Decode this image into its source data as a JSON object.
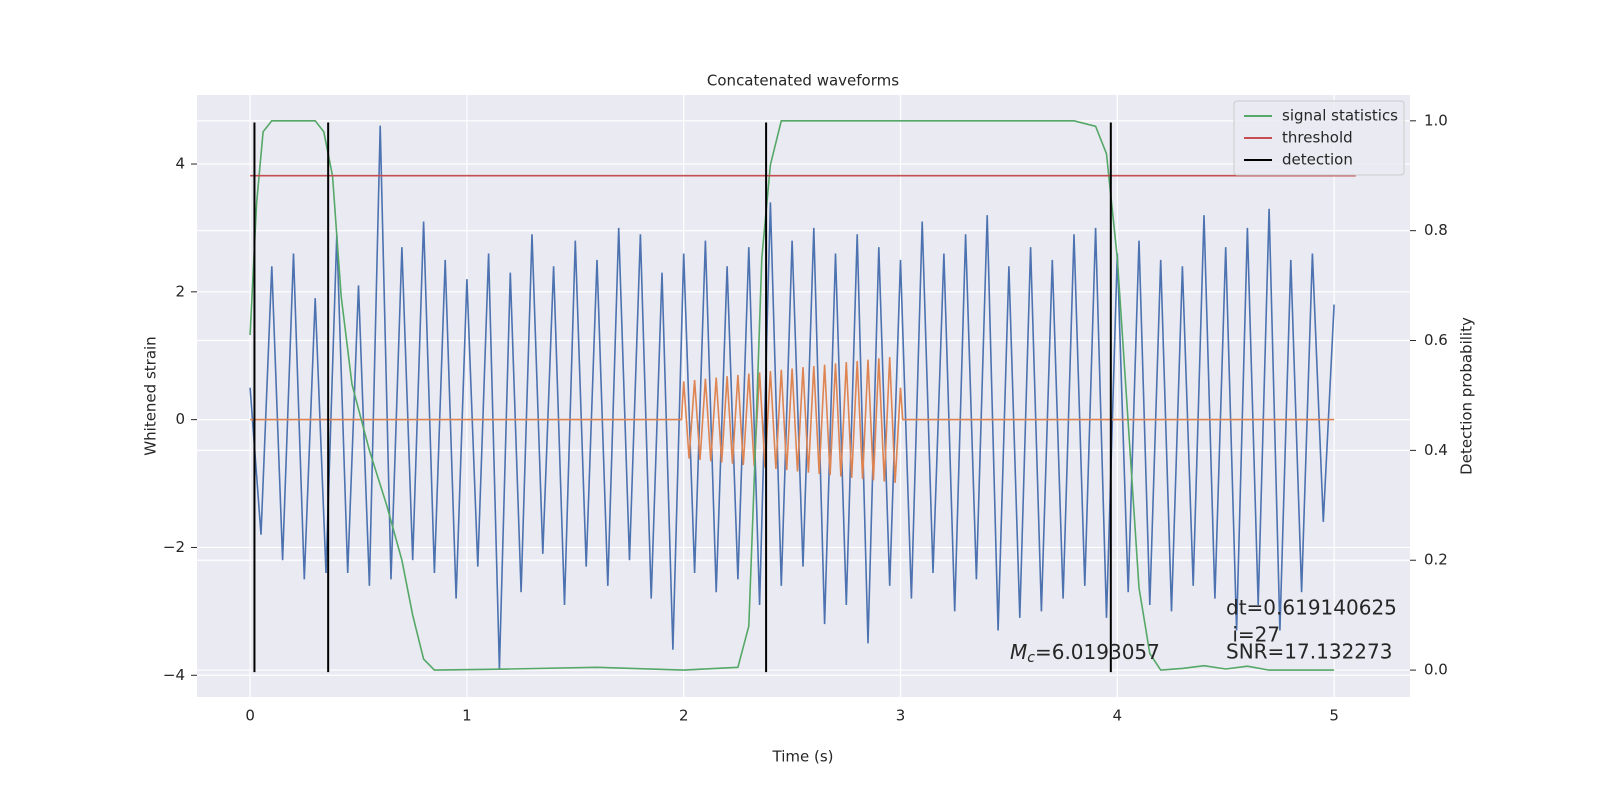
{
  "chart_data": {
    "type": "line",
    "title": "Concatenated waveforms",
    "xlabel": "Time (s)",
    "ylabel": "Whitened strain",
    "y2label": "Detection probability",
    "xlim": [
      -0.245,
      5.35
    ],
    "ylim": [
      -4.34,
      5.08
    ],
    "y2lim": [
      -0.049,
      1.047
    ],
    "xticks": [
      0,
      1,
      2,
      3,
      4,
      5
    ],
    "yticks": [
      {
        "value": -4,
        "label": "−4"
      },
      {
        "value": -2,
        "label": "−2"
      },
      0,
      2,
      4
    ],
    "y2ticks": [
      {
        "value": 0,
        "label": "0.0"
      },
      0.2,
      0.4,
      0.6,
      0.8,
      {
        "value": 1,
        "label": "1.0"
      }
    ],
    "grid": true,
    "legend": "upper right",
    "series": [
      {
        "color": "#4c72b0",
        "x": [
          0,
          0.05,
          0.1,
          0.15,
          0.2,
          0.25,
          0.3,
          0.35,
          0.4,
          0.45,
          0.5,
          0.55,
          0.6,
          0.65,
          0.7,
          0.75,
          0.8,
          0.85,
          0.9,
          0.95,
          1,
          1.05,
          1.1,
          1.15,
          1.2,
          1.25,
          1.3,
          1.35,
          1.4,
          1.45,
          1.5,
          1.55,
          1.6,
          1.65,
          1.7,
          1.75,
          1.8,
          1.85,
          1.9,
          1.95,
          2,
          2.05,
          2.1,
          2.15,
          2.2,
          2.25,
          2.3,
          2.35,
          2.4,
          2.45,
          2.5,
          2.55,
          2.6,
          2.65,
          2.7,
          2.75,
          2.8,
          2.85,
          2.9,
          2.95,
          3,
          3.05,
          3.1,
          3.15,
          3.2,
          3.25,
          3.3,
          3.35,
          3.4,
          3.45,
          3.5,
          3.55,
          3.6,
          3.65,
          3.7,
          3.75,
          3.8,
          3.85,
          3.9,
          3.95,
          4,
          4.05,
          4.1,
          4.15,
          4.2,
          4.25,
          4.3,
          4.35,
          4.4,
          4.45,
          4.5,
          4.55,
          4.6,
          4.65,
          4.7,
          4.75,
          4.8,
          4.85,
          4.9,
          4.95,
          5
        ],
        "values": [
          0.5,
          -1.8,
          2.4,
          -2.2,
          2.6,
          -2.5,
          1.9,
          -2.4,
          2.9,
          -2.4,
          2.1,
          -2.6,
          4.6,
          -2.5,
          2.7,
          -2.2,
          3.1,
          -2.4,
          2.5,
          -2.8,
          2.2,
          -2.3,
          2.6,
          -3.9,
          2.3,
          -2.7,
          2.9,
          -2.1,
          2.4,
          -2.9,
          2.8,
          -2.3,
          2.5,
          -2.6,
          3.0,
          -2.2,
          2.9,
          -2.8,
          2.3,
          -3.6,
          2.6,
          -2.4,
          2.8,
          -2.7,
          2.4,
          -2.5,
          2.7,
          -2.9,
          3.4,
          -2.6,
          2.8,
          -2.3,
          3.0,
          -3.2,
          2.6,
          -2.9,
          2.9,
          -3.5,
          2.7,
          -2.6,
          2.5,
          -2.8,
          3.1,
          -2.4,
          2.6,
          -3.0,
          2.9,
          -2.5,
          3.2,
          -3.3,
          2.4,
          -3.1,
          2.7,
          -3.0,
          2.5,
          -2.8,
          2.9,
          -2.6,
          3.0,
          -3.1,
          2.6,
          -2.7,
          2.8,
          -2.9,
          2.5,
          -3.0,
          2.4,
          -2.6,
          3.2,
          -2.8,
          2.7,
          -3.3,
          3.0,
          -2.9,
          3.3,
          -3.3,
          2.5,
          -2.7,
          2.6,
          -1.6,
          1.8
        ]
      },
      {
        "color": "#dd8452",
        "x": [
          0,
          1.99,
          2,
          2.025,
          2.05,
          2.075,
          2.1,
          2.125,
          2.15,
          2.175,
          2.2,
          2.225,
          2.25,
          2.275,
          2.3,
          2.325,
          2.35,
          2.375,
          2.4,
          2.425,
          2.45,
          2.475,
          2.5,
          2.525,
          2.55,
          2.575,
          2.6,
          2.625,
          2.65,
          2.675,
          2.7,
          2.725,
          2.75,
          2.775,
          2.8,
          2.825,
          2.85,
          2.875,
          2.9,
          2.925,
          2.95,
          2.975,
          3,
          3.01,
          5
        ],
        "values": [
          0,
          0,
          0.6,
          -0.61,
          0.62,
          -0.63,
          0.64,
          -0.65,
          0.66,
          -0.67,
          0.68,
          -0.69,
          0.7,
          -0.71,
          0.72,
          -0.73,
          0.74,
          -0.75,
          0.76,
          -0.77,
          0.78,
          -0.79,
          0.8,
          -0.81,
          0.82,
          -0.83,
          0.84,
          -0.85,
          0.86,
          -0.87,
          0.88,
          -0.89,
          0.9,
          -0.91,
          0.92,
          -0.93,
          0.94,
          -0.95,
          0.96,
          -0.97,
          0.98,
          -0.99,
          0.5,
          0,
          0
        ]
      },
      {
        "name": "signal statistics",
        "color": "#55a868",
        "axis": "y2",
        "x": [
          0,
          0.03,
          0.06,
          0.1,
          0.3,
          0.34,
          0.38,
          0.42,
          0.47,
          0.55,
          0.63,
          0.7,
          0.75,
          0.8,
          0.85,
          1.2,
          1.6,
          2.0,
          2.25,
          2.3,
          2.33,
          2.36,
          2.4,
          2.45,
          2.6,
          3.8,
          3.9,
          3.95,
          4.0,
          4.05,
          4.1,
          4.15,
          4.2,
          4.3,
          4.4,
          4.5,
          4.6,
          4.7,
          5
        ],
        "values": [
          0.61,
          0.85,
          0.98,
          1.0,
          1.0,
          0.98,
          0.9,
          0.68,
          0.52,
          0.4,
          0.3,
          0.2,
          0.1,
          0.02,
          0.0,
          0.002,
          0.005,
          0.0,
          0.005,
          0.08,
          0.4,
          0.75,
          0.92,
          1.0,
          1.0,
          1.0,
          0.99,
          0.94,
          0.75,
          0.45,
          0.15,
          0.03,
          0.0,
          0.003,
          0.008,
          0.002,
          0.007,
          0.0,
          0.0
        ]
      },
      {
        "name": "threshold",
        "color": "#c44e52",
        "axis": "y2",
        "x": [
          0,
          5.1
        ],
        "values": [
          0.9,
          0.9
        ]
      }
    ],
    "detection": {
      "name": "detection",
      "color": "#000000",
      "x": [
        0.02,
        0.36,
        2.38,
        3.97
      ],
      "span": [
        -3.95,
        4.65
      ]
    },
    "annotations": [
      "dt=0.619140625",
      " i=27",
      "SNR=17.132273"
    ],
    "mc_annotation": [
      "M",
      "c",
      "=6.0193057"
    ]
  }
}
